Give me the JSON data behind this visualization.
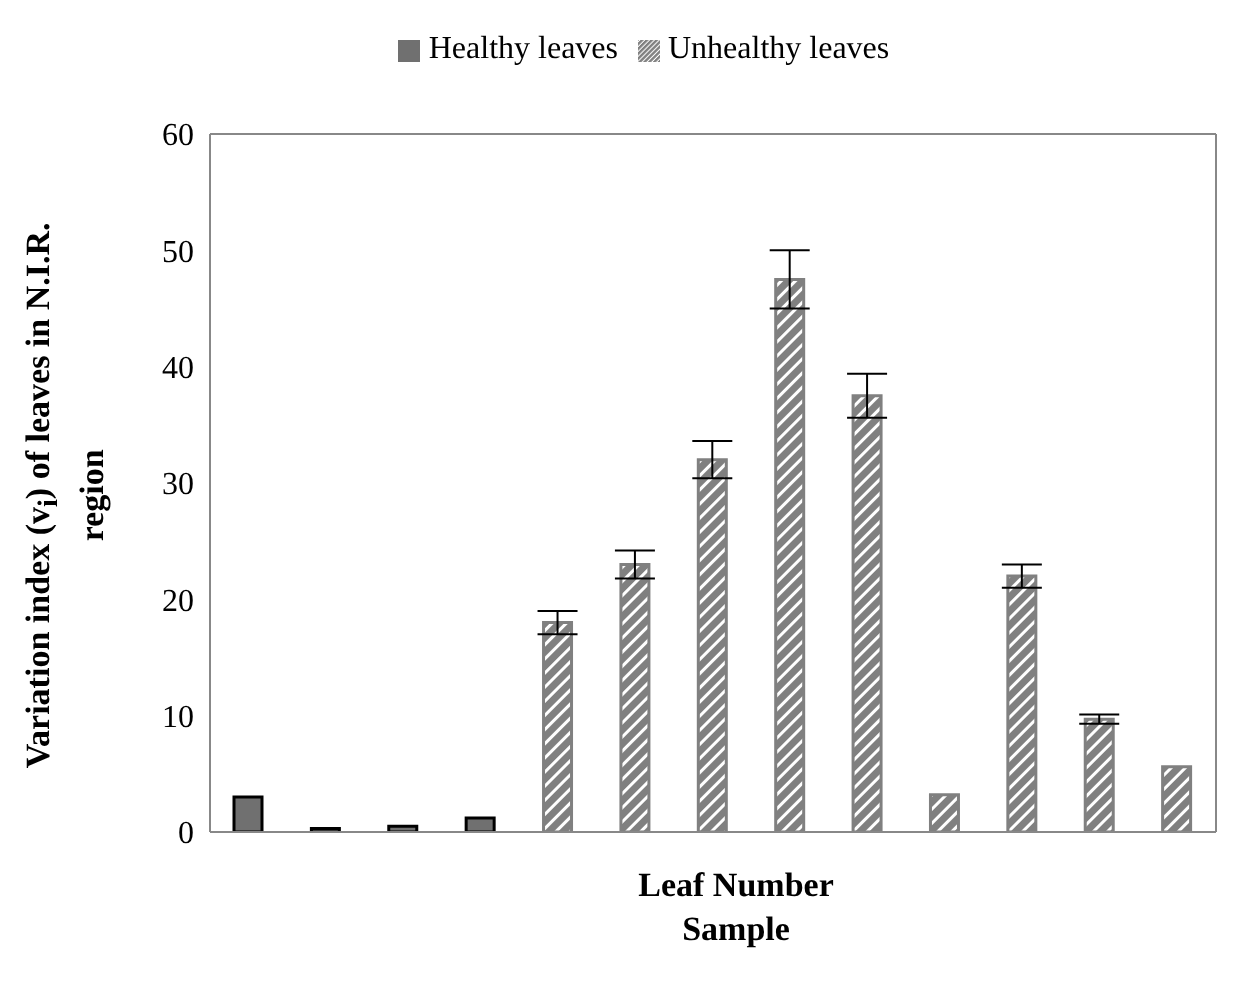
{
  "chart_data": {
    "type": "bar",
    "xlabel": "Leaf Number Sample",
    "ylabel": "Variation index (v$_{i}$) of leaves  in N.I.R. region",
    "categories": [
      null,
      null,
      null,
      null,
      null,
      null,
      null,
      null,
      null,
      null,
      null,
      null,
      null
    ],
    "series": [
      {
        "name": "Healthy leaves",
        "color": "#707070",
        "values": [
          3,
          0.3,
          0.5,
          1.2,
          null,
          null,
          null,
          null,
          null,
          null,
          null,
          null,
          null
        ]
      },
      {
        "name": "Unhealthy leaves",
        "color": "#808080",
        "values": [
          null,
          null,
          null,
          null,
          18,
          23,
          32,
          47.5,
          37.5,
          3.2,
          22,
          9.7,
          5.6
        ],
        "errors": [
          null,
          null,
          null,
          null,
          1,
          1.2,
          1.6,
          2.5,
          1.9,
          null,
          1,
          0.4,
          null
        ]
      }
    ],
    "ylim": [
      0,
      60
    ],
    "yticks": [
      0,
      10,
      20,
      30,
      40,
      50,
      60
    ],
    "legend": "top"
  }
}
